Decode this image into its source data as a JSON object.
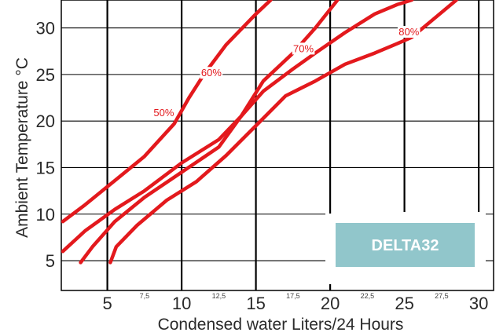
{
  "chart_data": {
    "type": "line",
    "title": "",
    "xlabel": "Condensed water Liters/24 Hours",
    "ylabel": "Ambient Temperature  °C",
    "xlim": [
      1.9,
      31
    ],
    "ylim": [
      1.8,
      33
    ],
    "x_major_ticks": [
      5,
      10,
      15,
      20,
      25,
      30
    ],
    "x_minor_ticks": [
      {
        "value": 7.5,
        "label": "7,5"
      },
      {
        "value": 12.5,
        "label": "12,5"
      },
      {
        "value": 17.5,
        "label": "17,5"
      },
      {
        "value": 22.5,
        "label": "22,5"
      },
      {
        "value": 27.5,
        "label": "27,5"
      }
    ],
    "y_ticks": [
      5,
      10,
      15,
      20,
      25,
      30
    ],
    "grid": true,
    "line_color": "#e3191d",
    "grid_color": "#000000",
    "series": [
      {
        "name": "50%",
        "x": [
          2.0,
          3.5,
          5.5,
          7.5,
          9.5,
          10.5,
          11.5,
          13,
          15,
          16
        ],
        "y": [
          9.2,
          11.0,
          13.6,
          16.2,
          19.7,
          22.5,
          25.0,
          28.2,
          31.5,
          33
        ]
      },
      {
        "name": "60%",
        "x": [
          2.0,
          3.5,
          5.5,
          7.5,
          10,
          12.5,
          14,
          15.5,
          17.5,
          19,
          20.5
        ],
        "y": [
          6.0,
          8.2,
          10.5,
          12.5,
          15.5,
          18.0,
          20.5,
          24.3,
          27.3,
          30.0,
          33
        ]
      },
      {
        "name": "70%",
        "x": [
          3.2,
          4,
          5.5,
          7.5,
          10,
          12.5,
          14,
          15.5,
          17.5,
          19,
          21,
          23,
          24.5,
          25.5
        ],
        "y": [
          4.8,
          6.5,
          9.2,
          11.8,
          14.5,
          17.2,
          20.5,
          23.2,
          25.6,
          27.3,
          29.5,
          31.5,
          32.5,
          33
        ]
      },
      {
        "name": "80%",
        "x": [
          5.2,
          5.6,
          7,
          9,
          11,
          13,
          15,
          17,
          19,
          21,
          23,
          24.5,
          25.5,
          27,
          28.5
        ],
        "y": [
          4.8,
          6.5,
          8.8,
          11.5,
          13.5,
          16.3,
          19.5,
          22.7,
          24.3,
          26.1,
          27.3,
          28.3,
          29.0,
          31.0,
          33
        ]
      }
    ],
    "series_labels": [
      {
        "text": "50%",
        "x": 8.8,
        "y": 20.5
      },
      {
        "text": "60%",
        "x": 12.0,
        "y": 24.8
      },
      {
        "text": "70%",
        "x": 18.2,
        "y": 27.4
      },
      {
        "text": "80%",
        "x": 25.3,
        "y": 29.2
      }
    ]
  },
  "badge": {
    "label": "DELTA32",
    "bg_color": "#91c6cb"
  }
}
